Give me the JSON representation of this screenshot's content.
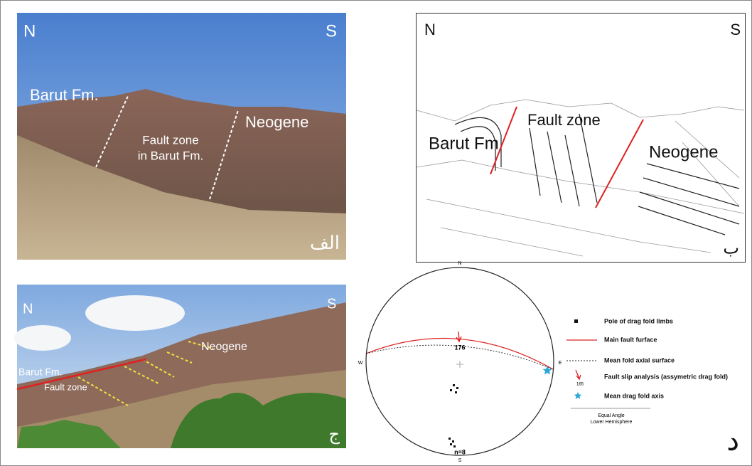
{
  "panel_a": {
    "north": "N",
    "south": "S",
    "labels": [
      "Barut Fm.",
      "Fault zone",
      "in Barut Fm.",
      "Neogene"
    ],
    "letter": "الف"
  },
  "panel_b": {
    "north": "N",
    "south": "S",
    "labels": [
      "Barut Fm",
      "Fault zone",
      "Neogene"
    ],
    "letter": "ب"
  },
  "panel_c": {
    "north": "N",
    "south": "S",
    "labels": [
      "Neogene",
      "Barut Fm.",
      "Fault zone"
    ],
    "letter": "ج"
  },
  "panel_d": {
    "directions": [
      "N",
      "S",
      "W",
      "E"
    ],
    "fault_label": "176",
    "count": "n=8",
    "legend": [
      "Pole of drag fold limbs",
      "Main fault furface",
      "Mean fold axial surface",
      "Fault slip analysis (assymetric drag fold)",
      "Mean drag fold axis"
    ],
    "slip_label": "165",
    "projection": [
      "Equal Angle",
      "Lower Hemisphere"
    ],
    "letter": "د"
  }
}
